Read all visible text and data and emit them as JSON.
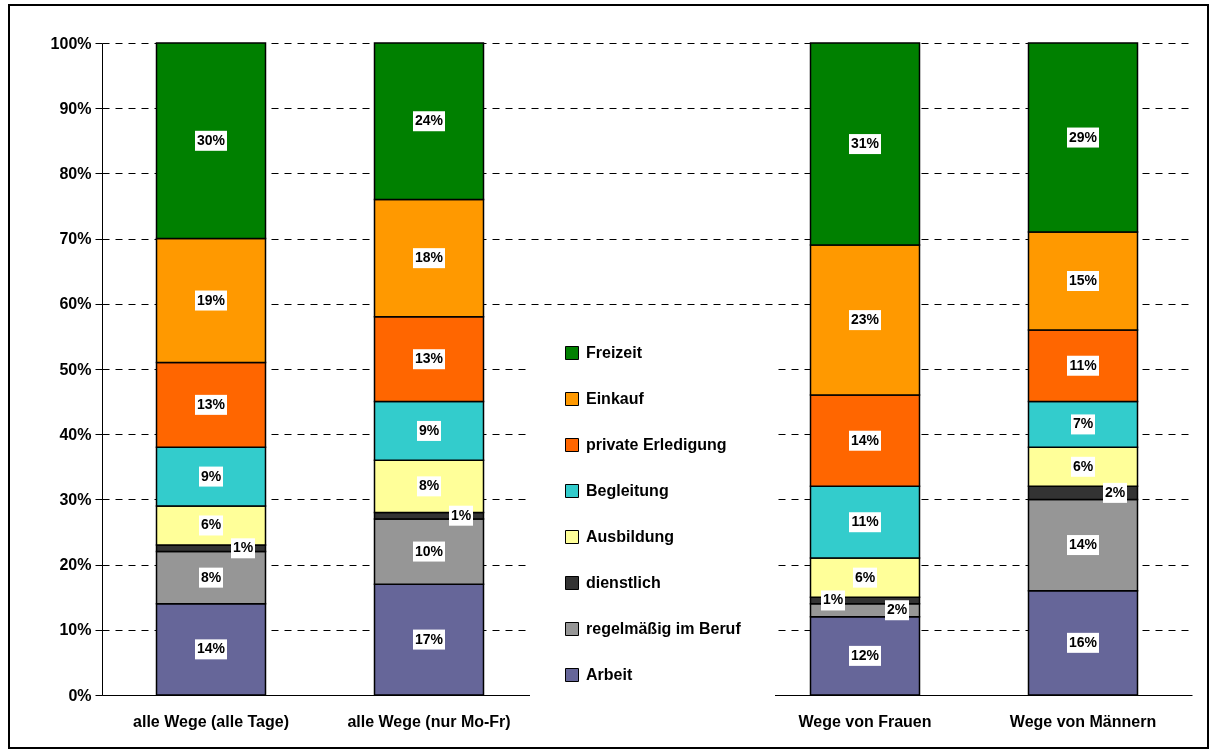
{
  "chart_data": {
    "type": "bar",
    "stacked": true,
    "categories": [
      "alle Wege (alle Tage)",
      "alle Wege (nur Mo-Fr)",
      null,
      "Wege von Frauen",
      "Wege von Männern"
    ],
    "series": [
      {
        "name": "Arbeit",
        "color": "#666699",
        "values": [
          14,
          17,
          null,
          12,
          16
        ],
        "value_labels": [
          "14%",
          "17%",
          null,
          "12%",
          "16%"
        ]
      },
      {
        "name": "regelmäßig im Beruf",
        "color": "#969696",
        "values": [
          8,
          10,
          null,
          2,
          14
        ],
        "value_labels": [
          "8%",
          "10%",
          null,
          "2%",
          "14%"
        ]
      },
      {
        "name": "dienstlich",
        "color": "#333333",
        "values": [
          1,
          1,
          null,
          1,
          2
        ],
        "value_labels": [
          "1%",
          "1%",
          null,
          "1%",
          "2%"
        ]
      },
      {
        "name": "Ausbildung",
        "color": "#ffff99",
        "values": [
          6,
          8,
          null,
          6,
          6
        ],
        "value_labels": [
          "6%",
          "8%",
          null,
          "6%",
          "6%"
        ]
      },
      {
        "name": "Begleitung",
        "color": "#33cccc",
        "values": [
          9,
          9,
          null,
          11,
          7
        ],
        "value_labels": [
          "9%",
          "9%",
          null,
          "11%",
          "7%"
        ]
      },
      {
        "name": "private Erledigung",
        "color": "#ff6600",
        "values": [
          13,
          13,
          null,
          14,
          11
        ],
        "value_labels": [
          "13%",
          "13%",
          null,
          "14%",
          "11%"
        ]
      },
      {
        "name": "Einkauf",
        "color": "#ff9900",
        "values": [
          19,
          18,
          null,
          23,
          15
        ],
        "value_labels": [
          "19%",
          "18%",
          null,
          "23%",
          "15%"
        ]
      },
      {
        "name": "Freizeit",
        "color": "#008000",
        "values": [
          30,
          24,
          null,
          31,
          29
        ],
        "value_labels": [
          "30%",
          "24%",
          null,
          "31%",
          "29%"
        ]
      }
    ],
    "ylim": [
      0,
      100
    ],
    "yticks": [
      {
        "value": 0,
        "label": "0%"
      },
      {
        "value": 10,
        "label": "10%"
      },
      {
        "value": 20,
        "label": "20%"
      },
      {
        "value": 30,
        "label": "30%"
      },
      {
        "value": 40,
        "label": "40%"
      },
      {
        "value": 50,
        "label": "50%"
      },
      {
        "value": 60,
        "label": "60%"
      },
      {
        "value": 70,
        "label": "70%"
      },
      {
        "value": 80,
        "label": "80%"
      },
      {
        "value": 90,
        "label": "90%"
      },
      {
        "value": 100,
        "label": "100%"
      }
    ],
    "grid": "y",
    "legend": "center"
  }
}
